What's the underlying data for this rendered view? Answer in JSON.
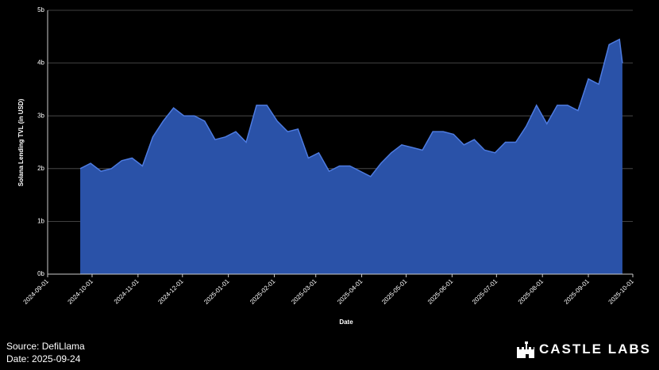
{
  "chart_data": {
    "type": "area",
    "y_label": "Solana Lending TVL (in USD)",
    "x_label": "Date",
    "color": "#2a52a8",
    "line_color": "#4d7be0",
    "x": [
      "2024-09-23",
      "2024-09-30",
      "2024-10-07",
      "2024-10-14",
      "2024-10-21",
      "2024-10-28",
      "2024-11-04",
      "2024-11-11",
      "2024-11-18",
      "2024-11-25",
      "2024-12-02",
      "2024-12-09",
      "2024-12-16",
      "2024-12-23",
      "2024-12-30",
      "2025-01-06",
      "2025-01-13",
      "2025-01-20",
      "2025-01-27",
      "2025-02-03",
      "2025-02-10",
      "2025-02-17",
      "2025-02-24",
      "2025-03-03",
      "2025-03-10",
      "2025-03-17",
      "2025-03-24",
      "2025-03-31",
      "2025-04-07",
      "2025-04-14",
      "2025-04-21",
      "2025-04-28",
      "2025-05-05",
      "2025-05-12",
      "2025-05-19",
      "2025-05-26",
      "2025-06-02",
      "2025-06-09",
      "2025-06-16",
      "2025-06-23",
      "2025-06-30",
      "2025-07-07",
      "2025-07-14",
      "2025-07-21",
      "2025-07-28",
      "2025-08-04",
      "2025-08-11",
      "2025-08-18",
      "2025-08-25",
      "2025-09-01",
      "2025-09-08",
      "2025-09-15",
      "2025-09-22",
      "2025-09-24"
    ],
    "values": [
      2.0,
      2.1,
      1.95,
      2.0,
      2.15,
      2.2,
      2.05,
      2.6,
      2.9,
      3.15,
      3.0,
      3.0,
      2.9,
      2.55,
      2.6,
      2.7,
      2.5,
      3.2,
      3.2,
      2.9,
      2.7,
      2.75,
      2.2,
      2.3,
      1.95,
      2.05,
      2.05,
      1.95,
      1.85,
      2.1,
      2.3,
      2.45,
      2.4,
      2.35,
      2.7,
      2.7,
      2.65,
      2.45,
      2.55,
      2.35,
      2.3,
      2.5,
      2.5,
      2.8,
      3.2,
      2.85,
      3.2,
      3.2,
      3.1,
      3.7,
      3.6,
      4.35,
      4.45,
      4.0
    ],
    "xlim": [
      "2024-09-01",
      "2025-10-01"
    ],
    "xticks": [
      "2024-09-01",
      "2024-10-01",
      "2024-11-01",
      "2024-12-01",
      "2025-01-01",
      "2025-02-01",
      "2025-03-01",
      "2025-04-01",
      "2025-05-01",
      "2025-06-01",
      "2025-07-01",
      "2025-08-01",
      "2025-09-01",
      "2025-10-01"
    ],
    "ylim": [
      0,
      5
    ],
    "yticks": [
      {
        "value": 0,
        "label": "0b"
      },
      {
        "value": 1,
        "label": "1b"
      },
      {
        "value": 2,
        "label": "2b"
      },
      {
        "value": 3,
        "label": "3b"
      },
      {
        "value": 4,
        "label": "4b"
      },
      {
        "value": 5,
        "label": "5b"
      }
    ],
    "grid": true
  },
  "footer": {
    "source": "Source: DefiLlama",
    "date": "Date: 2025-09-24",
    "brand": "CASTLE LABS"
  }
}
